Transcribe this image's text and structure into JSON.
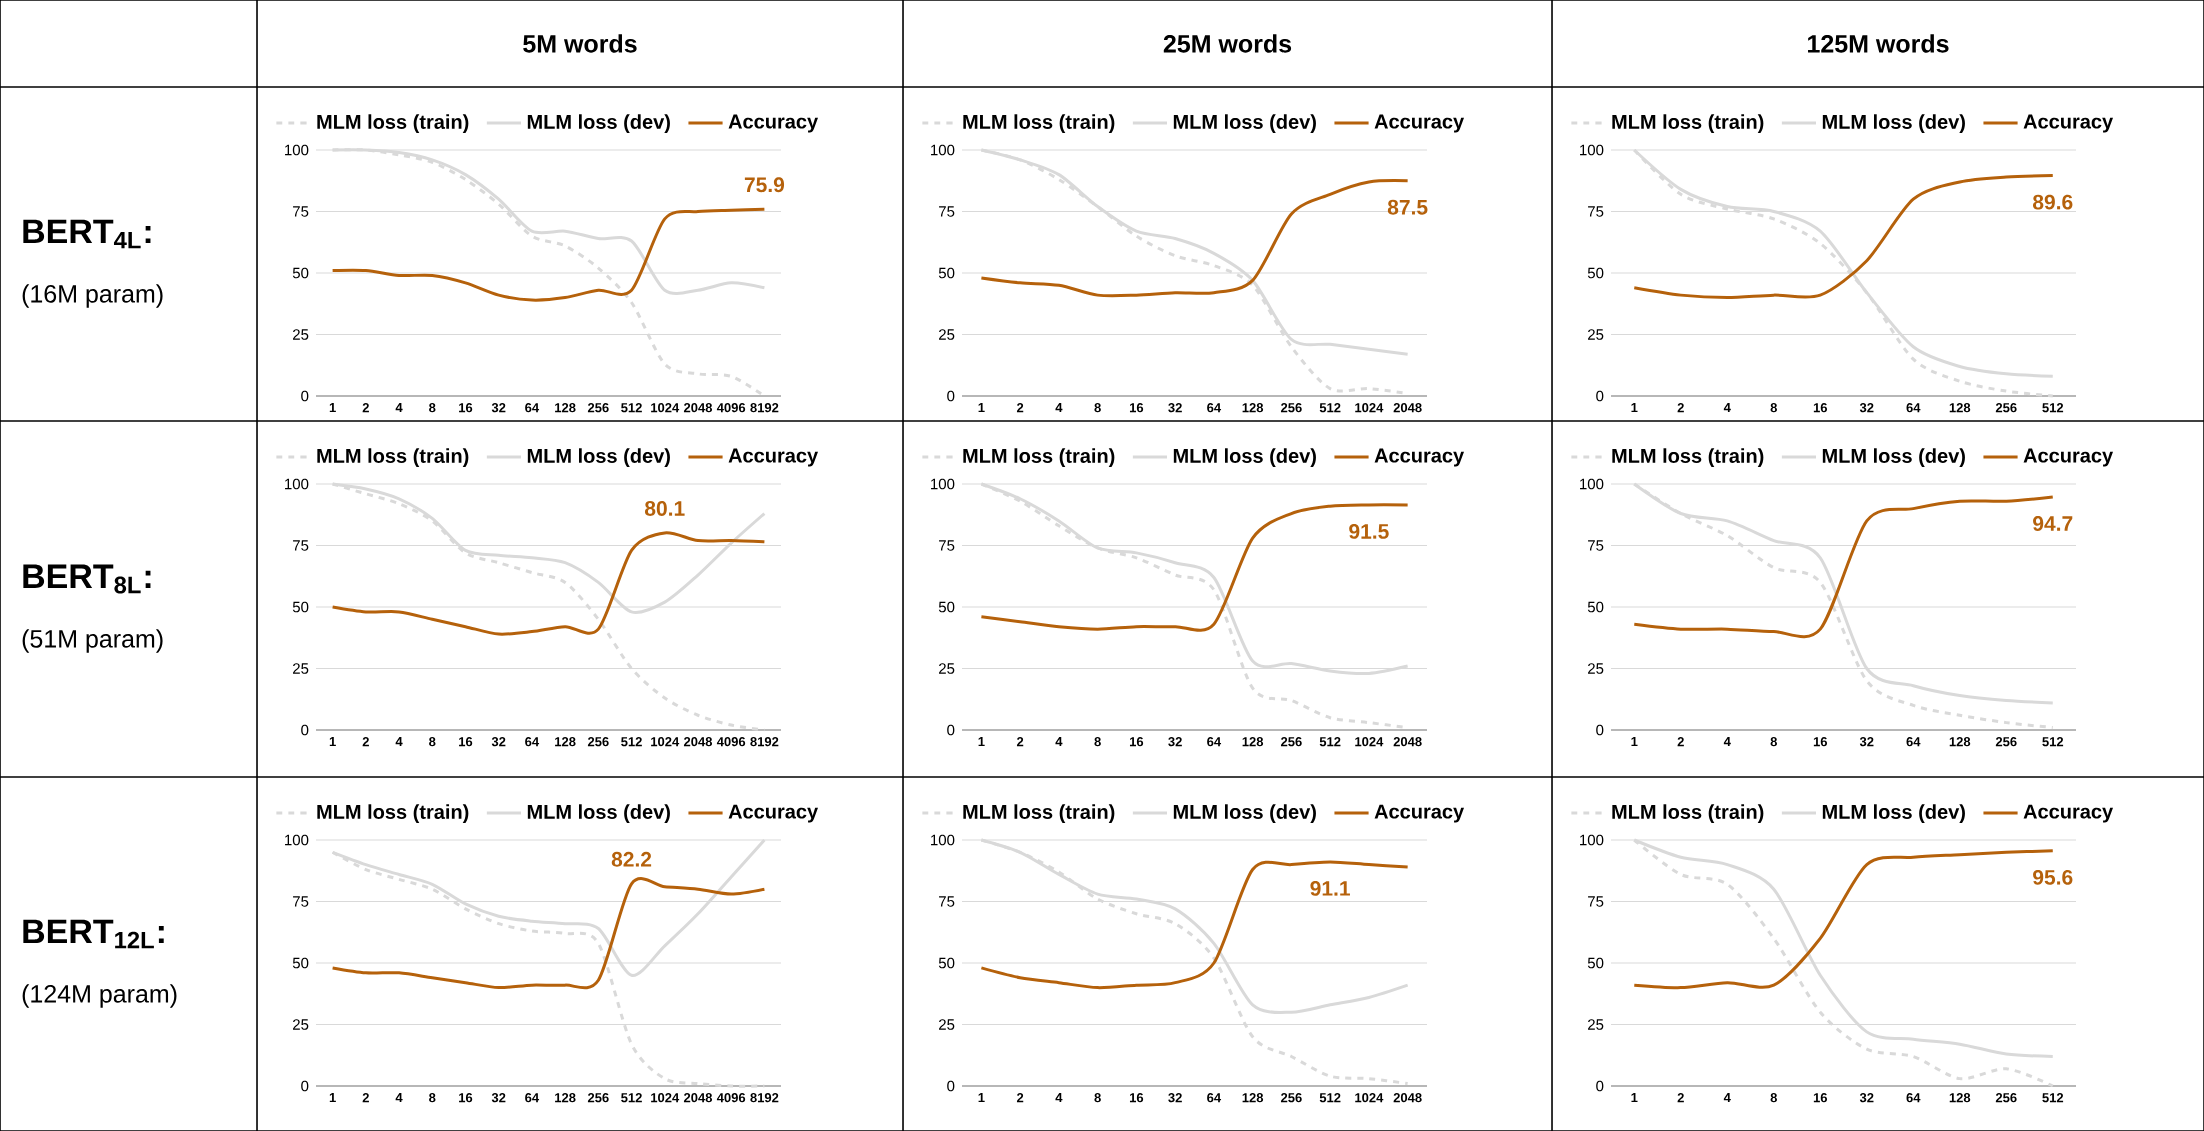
{
  "chart_data": [
    {
      "type": "line",
      "title": "5M words",
      "annotations": [
        "BERT$_{4L}$:",
        "(16M param)",
        {
          "text": "75.9",
          "x": "8192",
          "y": 75.9
        }
      ],
      "categories": [
        "1",
        "2",
        "4",
        "8",
        "16",
        "32",
        "64",
        "128",
        "256",
        "512",
        "1024",
        "2048",
        "4096",
        "8192"
      ],
      "ylim": [
        0,
        100
      ],
      "yticks": [
        0,
        25,
        50,
        75,
        100
      ],
      "grid": "y",
      "legend": "top",
      "series": [
        {
          "name": "MLM loss (train)",
          "color": "#d9d9d9",
          "line_style": "dashed",
          "values": [
            100,
            100,
            98,
            95,
            88,
            78,
            65,
            61,
            52,
            38,
            13,
            9,
            8,
            0
          ]
        },
        {
          "name": "MLM loss (dev)",
          "color": "#d9d9d9",
          "line_style": "solid",
          "values": [
            100,
            100,
            99,
            96,
            90,
            80,
            67,
            67,
            64,
            63,
            43,
            43,
            46,
            44
          ]
        },
        {
          "name": "Accuracy",
          "color": "#b5610b",
          "line_style": "solid",
          "values": [
            51,
            51,
            49,
            49,
            46,
            41,
            39,
            40,
            43,
            43,
            72,
            75,
            75.5,
            75.9
          ]
        }
      ]
    },
    {
      "type": "line",
      "title": "25M words",
      "annotations": [
        {
          "text": "87.5",
          "x": "2048",
          "y": 87.5
        }
      ],
      "categories": [
        "1",
        "2",
        "4",
        "8",
        "16",
        "32",
        "64",
        "128",
        "256",
        "512",
        "1024",
        "2048"
      ],
      "ylim": [
        0,
        100
      ],
      "yticks": [
        0,
        25,
        50,
        75,
        100
      ],
      "grid": "y",
      "legend": "top",
      "series": [
        {
          "name": "MLM loss (train)",
          "color": "#d9d9d9",
          "line_style": "dashed",
          "values": [
            100,
            96,
            88,
            77,
            65,
            57,
            53,
            45,
            20,
            3,
            3,
            1
          ]
        },
        {
          "name": "MLM loss (dev)",
          "color": "#d9d9d9",
          "line_style": "solid",
          "values": [
            100,
            96,
            90,
            77,
            67,
            64,
            58,
            47,
            23,
            21,
            19,
            17
          ]
        },
        {
          "name": "Accuracy",
          "color": "#b5610b",
          "line_style": "solid",
          "values": [
            48,
            46,
            45,
            41,
            41,
            42,
            42,
            47,
            74,
            82,
            87,
            87.5
          ]
        }
      ]
    },
    {
      "type": "line",
      "title": "125M words",
      "annotations": [
        {
          "text": "89.6",
          "x": "512",
          "y": 89.6
        }
      ],
      "categories": [
        "1",
        "2",
        "4",
        "8",
        "16",
        "32",
        "64",
        "128",
        "256",
        "512"
      ],
      "ylim": [
        0,
        100
      ],
      "yticks": [
        0,
        25,
        50,
        75,
        100
      ],
      "grid": "y",
      "legend": "top",
      "series": [
        {
          "name": "MLM loss (train)",
          "color": "#d9d9d9",
          "line_style": "dashed",
          "values": [
            100,
            82,
            76,
            72,
            62,
            42,
            15,
            6,
            2,
            0
          ]
        },
        {
          "name": "MLM loss (dev)",
          "color": "#d9d9d9",
          "line_style": "solid",
          "values": [
            100,
            84,
            77,
            75,
            67,
            42,
            20,
            12,
            9,
            8
          ]
        },
        {
          "name": "Accuracy",
          "color": "#b5610b",
          "line_style": "solid",
          "values": [
            44,
            41,
            40,
            41,
            41,
            55,
            80,
            87,
            89,
            89.6
          ]
        }
      ]
    },
    {
      "type": "line",
      "annotations": [
        "BERT$_{8L}$:",
        "(51M param)",
        {
          "text": "80.1",
          "x": "1024",
          "y": 80.1
        }
      ],
      "categories": [
        "1",
        "2",
        "4",
        "8",
        "16",
        "32",
        "64",
        "128",
        "256",
        "512",
        "1024",
        "2048",
        "4096",
        "8192"
      ],
      "ylim": [
        0,
        100
      ],
      "yticks": [
        0,
        25,
        50,
        75,
        100
      ],
      "grid": "y",
      "legend": "top",
      "series": [
        {
          "name": "MLM loss (train)",
          "color": "#d9d9d9",
          "line_style": "dashed",
          "values": [
            100,
            96,
            92,
            85,
            72,
            68,
            64,
            60,
            45,
            25,
            13,
            6,
            2,
            0
          ]
        },
        {
          "name": "MLM loss (dev)",
          "color": "#d9d9d9",
          "line_style": "solid",
          "values": [
            100,
            98,
            94,
            86,
            73,
            71,
            70,
            68,
            60,
            48,
            52,
            63,
            76,
            88
          ]
        },
        {
          "name": "Accuracy",
          "color": "#b5610b",
          "line_style": "solid",
          "values": [
            50,
            48,
            48,
            45,
            42,
            39,
            40,
            42,
            41,
            73,
            80.1,
            77,
            77,
            76.5
          ]
        }
      ]
    },
    {
      "type": "line",
      "annotations": [
        {
          "text": "91.5",
          "x": "1024",
          "y": 91.5
        }
      ],
      "categories": [
        "1",
        "2",
        "4",
        "8",
        "16",
        "32",
        "64",
        "128",
        "256",
        "512",
        "1024",
        "2048"
      ],
      "ylim": [
        0,
        100
      ],
      "yticks": [
        0,
        25,
        50,
        75,
        100
      ],
      "grid": "y",
      "legend": "top",
      "series": [
        {
          "name": "MLM loss (train)",
          "color": "#d9d9d9",
          "line_style": "dashed",
          "values": [
            100,
            93,
            83,
            74,
            70,
            63,
            57,
            17,
            12,
            5,
            3,
            1
          ]
        },
        {
          "name": "MLM loss (dev)",
          "color": "#d9d9d9",
          "line_style": "solid",
          "values": [
            100,
            94,
            85,
            74,
            72,
            68,
            62,
            28,
            27,
            24,
            23,
            26
          ]
        },
        {
          "name": "Accuracy",
          "color": "#b5610b",
          "line_style": "solid",
          "values": [
            46,
            44,
            42,
            41,
            42,
            42,
            43,
            78,
            88,
            91,
            91.5,
            91.5
          ]
        }
      ]
    },
    {
      "type": "line",
      "annotations": [
        {
          "text": "94.7",
          "x": "512",
          "y": 94.7
        }
      ],
      "categories": [
        "1",
        "2",
        "4",
        "8",
        "16",
        "32",
        "64",
        "128",
        "256",
        "512"
      ],
      "ylim": [
        0,
        100
      ],
      "yticks": [
        0,
        25,
        50,
        75,
        100
      ],
      "grid": "y",
      "legend": "top",
      "series": [
        {
          "name": "MLM loss (train)",
          "color": "#d9d9d9",
          "line_style": "dashed",
          "values": [
            100,
            88,
            79,
            66,
            60,
            20,
            10,
            6,
            3,
            1
          ]
        },
        {
          "name": "MLM loss (dev)",
          "color": "#d9d9d9",
          "line_style": "solid",
          "values": [
            100,
            88,
            85,
            77,
            70,
            25,
            18,
            14,
            12,
            11
          ]
        },
        {
          "name": "Accuracy",
          "color": "#b5610b",
          "line_style": "solid",
          "values": [
            43,
            41,
            41,
            40,
            41,
            85,
            90,
            93,
            93,
            94.7
          ]
        }
      ]
    },
    {
      "type": "line",
      "annotations": [
        "BERT$_{12L}$:",
        "(124M param)",
        {
          "text": "82.2",
          "x": "512",
          "y": 82.2
        }
      ],
      "categories": [
        "1",
        "2",
        "4",
        "8",
        "16",
        "32",
        "64",
        "128",
        "256",
        "512",
        "1024",
        "2048",
        "4096",
        "8192"
      ],
      "ylim": [
        0,
        100
      ],
      "yticks": [
        0,
        25,
        50,
        75,
        100
      ],
      "grid": "y",
      "legend": "top",
      "series": [
        {
          "name": "MLM loss (train)",
          "color": "#d9d9d9",
          "line_style": "dashed",
          "values": [
            95,
            88,
            84,
            80,
            72,
            66,
            63,
            62,
            58,
            17,
            3,
            1,
            0,
            0
          ]
        },
        {
          "name": "MLM loss (dev)",
          "color": "#d9d9d9",
          "line_style": "solid",
          "values": [
            95,
            90,
            86,
            82,
            74,
            69,
            67,
            66,
            64,
            45,
            57,
            70,
            85,
            100
          ]
        },
        {
          "name": "Accuracy",
          "color": "#b5610b",
          "line_style": "solid",
          "values": [
            48,
            46,
            46,
            44,
            42,
            40,
            41,
            41,
            43,
            82.2,
            81,
            80,
            78,
            80
          ]
        }
      ]
    },
    {
      "type": "line",
      "annotations": [
        {
          "text": "91.1",
          "x": "512",
          "y": 91.1
        }
      ],
      "categories": [
        "1",
        "2",
        "4",
        "8",
        "16",
        "32",
        "64",
        "128",
        "256",
        "512",
        "1024",
        "2048"
      ],
      "ylim": [
        0,
        100
      ],
      "yticks": [
        0,
        25,
        50,
        75,
        100
      ],
      "grid": "y",
      "legend": "top",
      "series": [
        {
          "name": "MLM loss (train)",
          "color": "#d9d9d9",
          "line_style": "dashed",
          "values": [
            100,
            95,
            87,
            76,
            70,
            66,
            52,
            20,
            12,
            4,
            3,
            1
          ]
        },
        {
          "name": "MLM loss (dev)",
          "color": "#d9d9d9",
          "line_style": "solid",
          "values": [
            100,
            95,
            86,
            78,
            76,
            72,
            58,
            33,
            30,
            33,
            36,
            41
          ]
        },
        {
          "name": "Accuracy",
          "color": "#b5610b",
          "line_style": "solid",
          "values": [
            48,
            44,
            42,
            40,
            41,
            42,
            50,
            88,
            90,
            91.1,
            90,
            89
          ]
        }
      ]
    },
    {
      "type": "line",
      "annotations": [
        {
          "text": "95.6",
          "x": "512",
          "y": 95.6
        }
      ],
      "categories": [
        "1",
        "2",
        "4",
        "8",
        "16",
        "32",
        "64",
        "128",
        "256",
        "512"
      ],
      "ylim": [
        0,
        100
      ],
      "yticks": [
        0,
        25,
        50,
        75,
        100
      ],
      "grid": "y",
      "legend": "top",
      "series": [
        {
          "name": "MLM loss (train)",
          "color": "#d9d9d9",
          "line_style": "dashed",
          "values": [
            100,
            86,
            82,
            60,
            30,
            15,
            12,
            3,
            7,
            0
          ]
        },
        {
          "name": "MLM loss (dev)",
          "color": "#d9d9d9",
          "line_style": "solid",
          "values": [
            100,
            93,
            90,
            80,
            45,
            22,
            19,
            17,
            13,
            12
          ]
        },
        {
          "name": "Accuracy",
          "color": "#b5610b",
          "line_style": "solid",
          "values": [
            41,
            40,
            42,
            41,
            60,
            90,
            93,
            94,
            95,
            95.6
          ]
        }
      ]
    }
  ]
}
